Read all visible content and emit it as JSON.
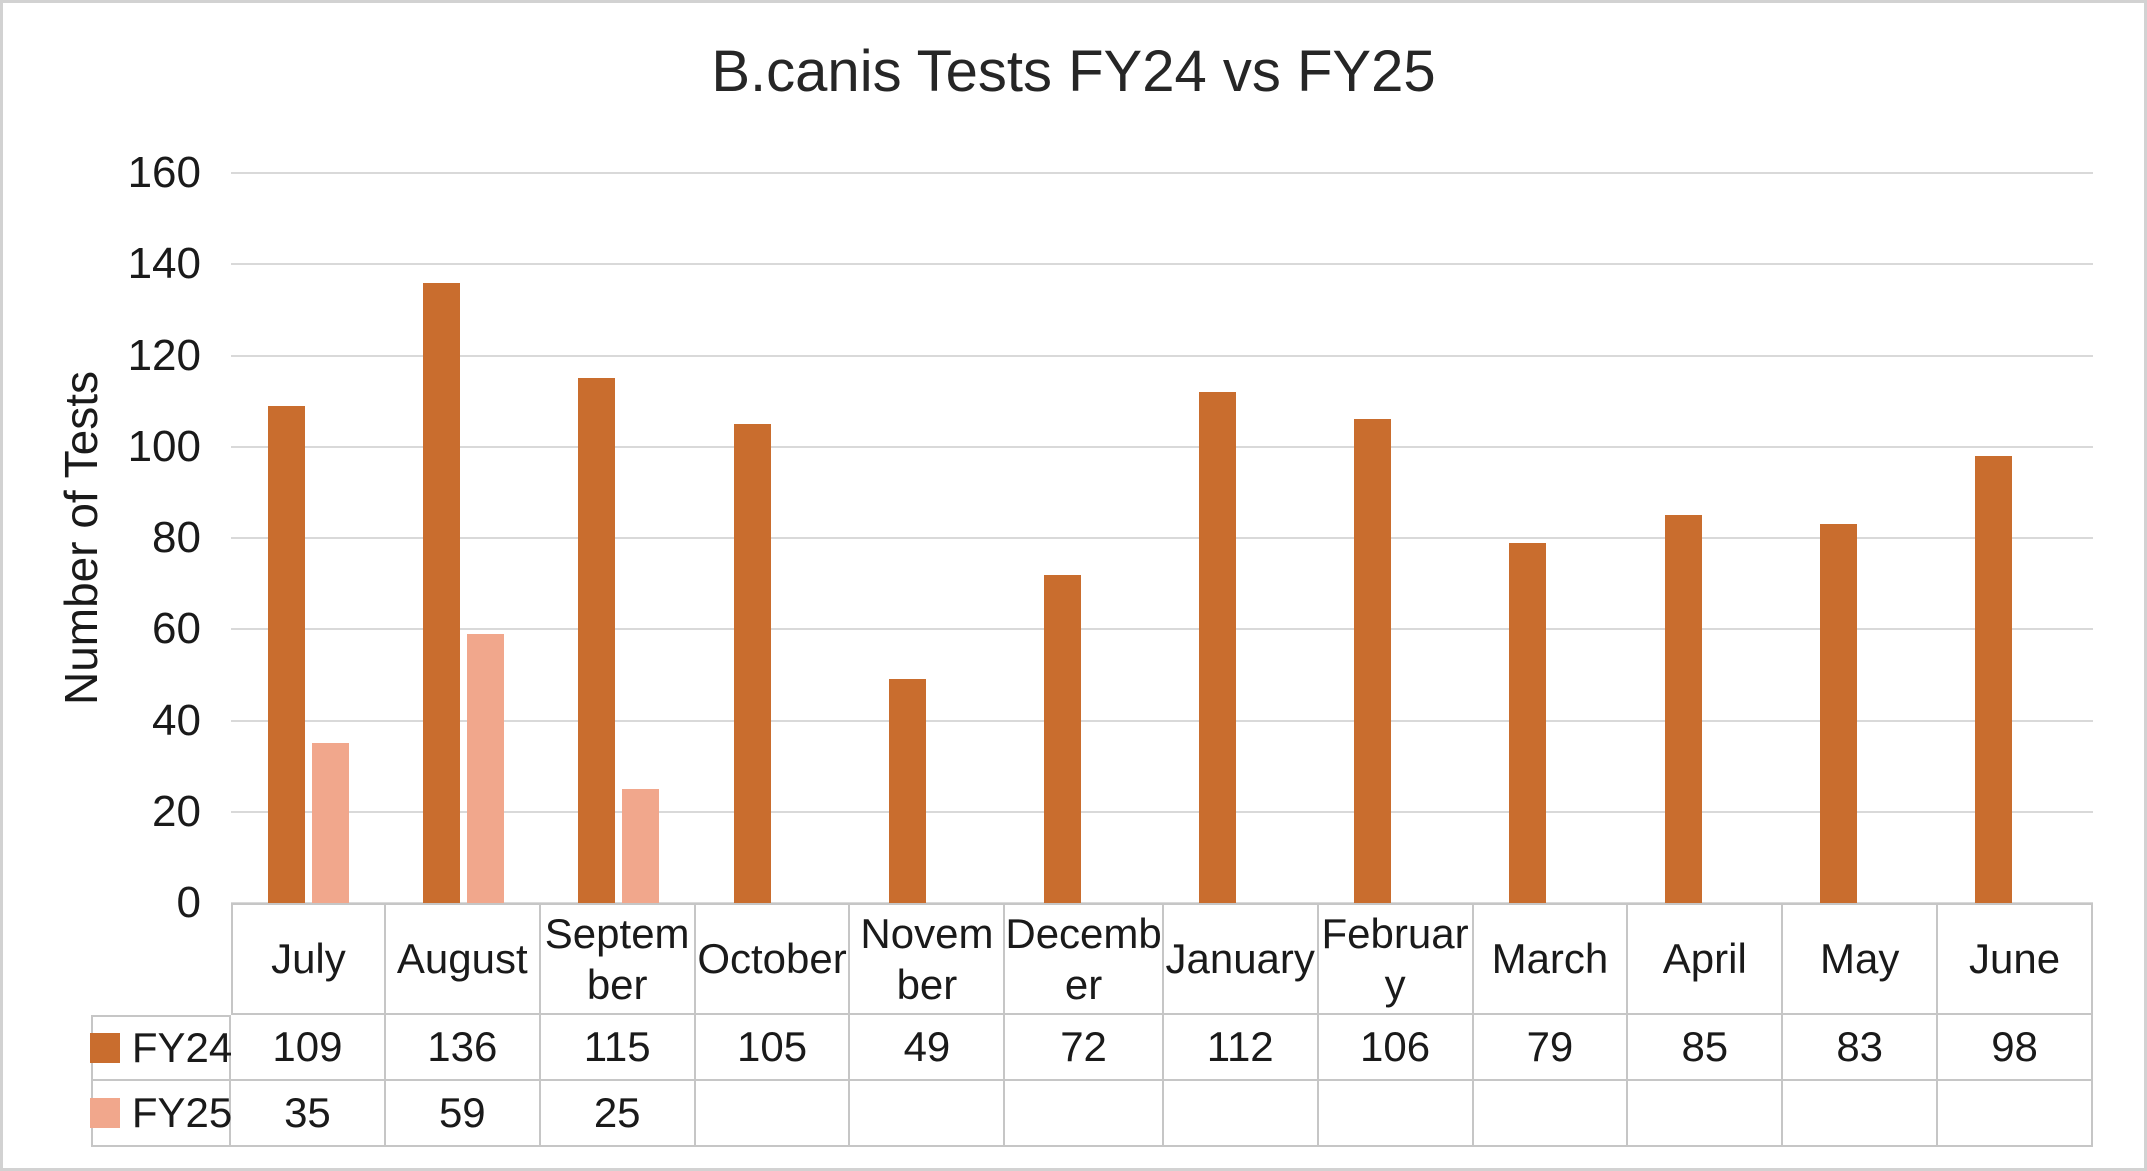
{
  "chart_data": {
    "type": "bar",
    "title": "B.canis Tests FY24 vs FY25",
    "xlabel": "",
    "ylabel": "Number of Tests",
    "ylim": [
      0,
      160
    ],
    "yticks": [
      0,
      20,
      40,
      60,
      80,
      100,
      120,
      140,
      160
    ],
    "grid": true,
    "legend_position": "data-table-left",
    "categories": [
      "July",
      "August",
      "September",
      "October",
      "November",
      "December",
      "January",
      "February",
      "March",
      "April",
      "May",
      "June"
    ],
    "categories_display": [
      "July",
      "August",
      "Septem\nber",
      "October",
      "Novem\nber",
      "Decemb\ner",
      "January",
      "Februar\ny",
      "March",
      "April",
      "May",
      "June"
    ],
    "series": [
      {
        "name": "FY24",
        "color": "#C96D2E",
        "values": [
          109,
          136,
          115,
          105,
          49,
          72,
          112,
          106,
          79,
          85,
          83,
          98
        ]
      },
      {
        "name": "FY25",
        "color": "#F1A78C",
        "values": [
          35,
          59,
          25,
          null,
          null,
          null,
          null,
          null,
          null,
          null,
          null,
          null
        ]
      }
    ],
    "colors": {
      "gridline": "#D9D9D9",
      "table_border": "#C6C6C6",
      "title_text": "#262626",
      "axis_text": "#1a1a1a"
    }
  }
}
